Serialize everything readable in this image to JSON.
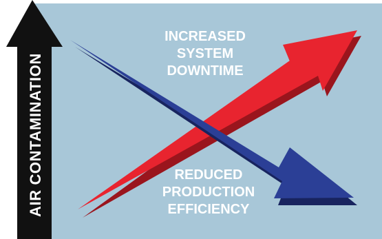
{
  "diagram": {
    "y_axis_label": "AIR CONTAMINATION",
    "rising_label": [
      "INCREASED",
      "SYSTEM",
      "DOWNTIME"
    ],
    "falling_label": [
      "REDUCED",
      "PRODUCTION",
      "EFFICIENCY"
    ]
  },
  "colors": {
    "background_panel": "#a8c7d8",
    "axis_arrow": "#111111",
    "rising_arrow": "#e8242f",
    "rising_arrow_shadow": "#9a151d",
    "falling_arrow": "#2b3f96",
    "falling_arrow_shadow": "#18245f",
    "label_text": "#ffffff"
  }
}
